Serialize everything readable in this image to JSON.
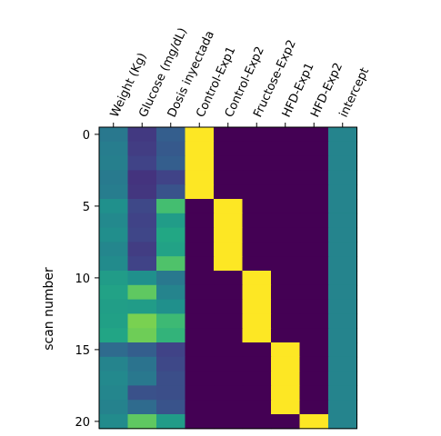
{
  "chart_data": {
    "type": "heatmap",
    "title": "",
    "xlabel": "",
    "ylabel": "scan number",
    "columns": [
      "Weight (Kg)",
      "Glucose (mg/dL)",
      "Dosis inyectada",
      "Control-Exp1",
      "Control-Exp2",
      "Fructose-Exp2",
      "HFD-Exp1",
      "HFD-Exp2",
      "intercept"
    ],
    "rows": [
      0,
      1,
      2,
      3,
      4,
      5,
      6,
      7,
      8,
      9,
      10,
      11,
      12,
      13,
      14,
      15,
      16,
      17,
      18,
      19,
      20
    ],
    "yticks": [
      0,
      5,
      10,
      15,
      20
    ],
    "colormap": "viridis",
    "value_range": [
      0,
      1
    ],
    "values": [
      [
        0.4,
        0.17,
        0.3,
        1,
        0,
        0,
        0,
        0,
        0.45
      ],
      [
        0.42,
        0.18,
        0.28,
        1,
        0,
        0,
        0,
        0,
        0.45
      ],
      [
        0.43,
        0.2,
        0.3,
        1,
        0,
        0,
        0,
        0,
        0.45
      ],
      [
        0.41,
        0.15,
        0.2,
        1,
        0,
        0,
        0,
        0,
        0.45
      ],
      [
        0.42,
        0.16,
        0.26,
        1,
        0,
        0,
        0,
        0,
        0.45
      ],
      [
        0.5,
        0.22,
        0.7,
        0,
        1,
        0,
        0,
        0,
        0.45
      ],
      [
        0.47,
        0.2,
        0.55,
        0,
        1,
        0,
        0,
        0,
        0.45
      ],
      [
        0.49,
        0.21,
        0.6,
        0,
        1,
        0,
        0,
        0,
        0.45
      ],
      [
        0.46,
        0.18,
        0.58,
        0,
        1,
        0,
        0,
        0,
        0.45
      ],
      [
        0.48,
        0.2,
        0.72,
        0,
        1,
        0,
        0,
        0,
        0.45
      ],
      [
        0.55,
        0.5,
        0.4,
        0,
        0,
        1,
        0,
        0,
        0.45
      ],
      [
        0.58,
        0.75,
        0.45,
        0,
        0,
        1,
        0,
        0,
        0.45
      ],
      [
        0.56,
        0.55,
        0.5,
        0,
        0,
        1,
        0,
        0,
        0.45
      ],
      [
        0.57,
        0.8,
        0.68,
        0,
        0,
        1,
        0,
        0,
        0.45
      ],
      [
        0.59,
        0.78,
        0.65,
        0,
        0,
        1,
        0,
        0,
        0.45
      ],
      [
        0.35,
        0.3,
        0.2,
        0,
        0,
        0,
        1,
        0,
        0.45
      ],
      [
        0.45,
        0.38,
        0.22,
        0,
        0,
        0,
        1,
        0,
        0.45
      ],
      [
        0.47,
        0.4,
        0.24,
        0,
        0,
        0,
        1,
        0,
        0.45
      ],
      [
        0.46,
        0.25,
        0.24,
        0,
        0,
        0,
        1,
        0,
        0.45
      ],
      [
        0.44,
        0.35,
        0.26,
        0,
        0,
        0,
        1,
        0,
        0.45
      ],
      [
        0.48,
        0.75,
        0.55,
        0,
        0,
        0,
        0,
        1,
        0.45
      ]
    ]
  }
}
